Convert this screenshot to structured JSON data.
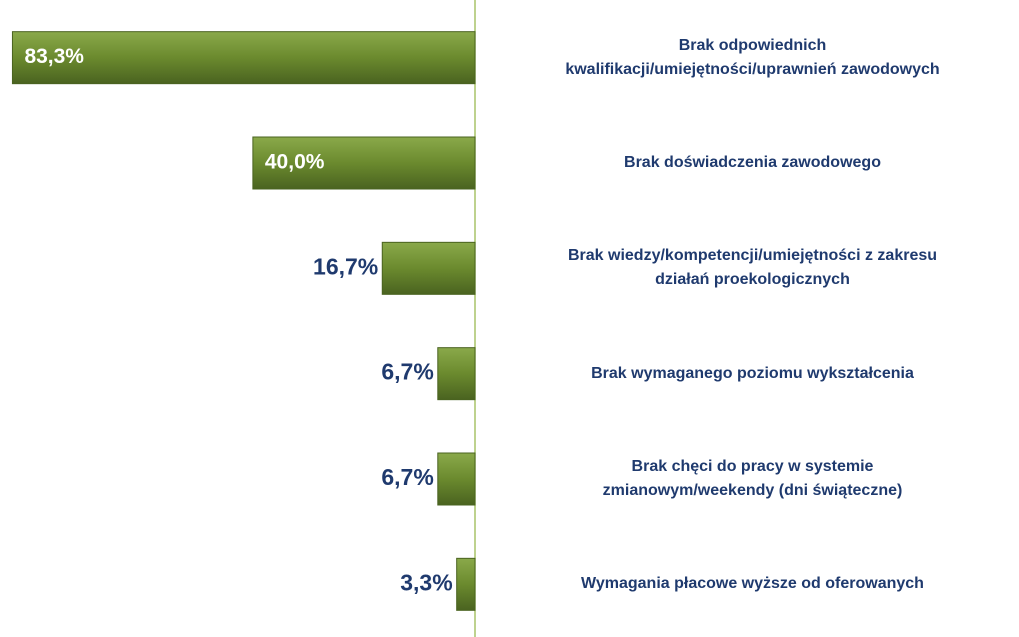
{
  "chart_data": {
    "type": "bar",
    "orientation": "horizontal",
    "categories": [
      "Brak odpowiednich\nkwalifikacji/umiejętności/uprawnień zawodowych",
      "Brak doświadczenia zawodowego",
      "Brak wiedzy/kompetencji/umiejętności z zakresu\ndziałań proekologicznych",
      "Brak wymaganego poziomu wykształcenia",
      "Brak chęci do pracy w systemie\nzmianowym/weekendy (dni świąteczne)",
      "Wymagania płacowe wyższe od oferowanych"
    ],
    "values": [
      83.3,
      40.0,
      16.7,
      6.7,
      6.7,
      3.3
    ],
    "value_labels": [
      "83,3%",
      "40,0%",
      "16,7%",
      "6,7%",
      "6,7%",
      "3,3%"
    ],
    "color": "#6b8a2e",
    "xlim": [
      0,
      85
    ]
  }
}
